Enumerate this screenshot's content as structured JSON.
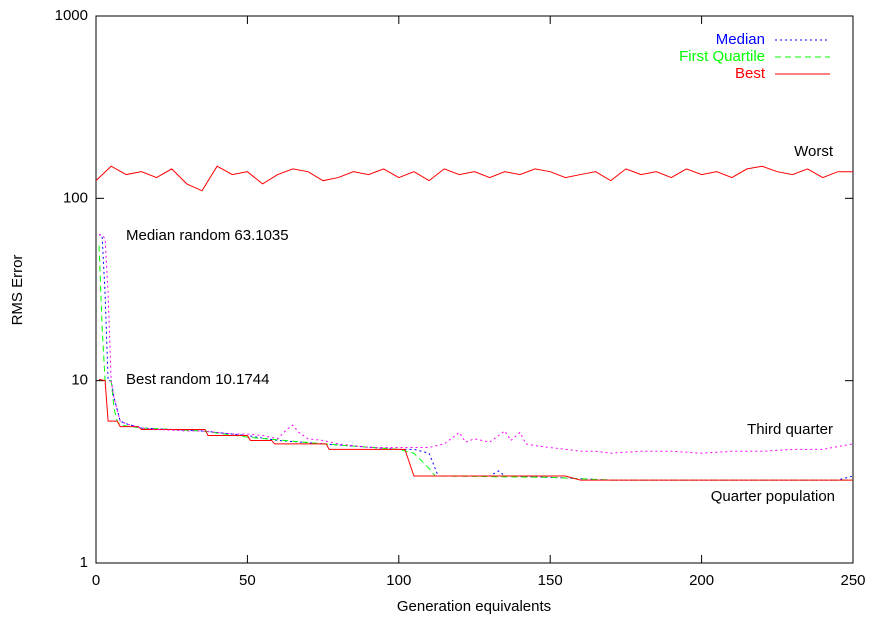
{
  "chart_data": {
    "type": "line",
    "xlabel": "Generation equivalents",
    "ylabel": "RMS Error",
    "xlim": [
      0,
      250
    ],
    "xticks": [
      0,
      50,
      100,
      150,
      200,
      250
    ],
    "ylim": [
      1,
      1000
    ],
    "yticks": [
      1,
      10,
      100,
      1000
    ],
    "log_y": true,
    "grid": false,
    "legend": "top-right",
    "series": [
      {
        "name": "Median",
        "color": "#0000ff",
        "dash": "2,3",
        "x": [
          1,
          2,
          3,
          4,
          5,
          6,
          8,
          10,
          15,
          35,
          50,
          60,
          75,
          100,
          105,
          110,
          113,
          130,
          133,
          135,
          150,
          170,
          245,
          250
        ],
        "values": [
          63.1,
          63,
          30,
          10,
          10,
          8,
          6,
          5.8,
          5.5,
          5.3,
          5.0,
          4.7,
          4.5,
          4.2,
          4.2,
          4.0,
          3.0,
          3.0,
          3.2,
          3.0,
          2.95,
          2.85,
          2.85,
          3.0
        ]
      },
      {
        "name": "First Quartile",
        "color": "#00ff00",
        "dash": "6,4",
        "x": [
          1,
          2,
          3,
          5,
          6,
          7,
          8,
          15,
          35,
          50,
          75,
          100,
          105,
          110,
          112,
          150,
          170,
          250
        ],
        "values": [
          55,
          20,
          10,
          10,
          7,
          6,
          5.7,
          5.5,
          5.3,
          4.9,
          4.5,
          4.2,
          4.0,
          3.3,
          3.0,
          2.95,
          2.85,
          2.85
        ]
      },
      {
        "name": "Best",
        "color": "#ff0000",
        "x": [
          1,
          3,
          4,
          7,
          8,
          14,
          15,
          36,
          37,
          50,
          51,
          58,
          59,
          76,
          77,
          102,
          105,
          155,
          160,
          250
        ],
        "values": [
          10.17,
          10,
          6,
          6,
          5.6,
          5.6,
          5.4,
          5.4,
          5.0,
          5.0,
          4.7,
          4.7,
          4.5,
          4.5,
          4.2,
          4.2,
          3.0,
          3.0,
          2.85,
          2.85
        ]
      },
      {
        "color": "#ff00ff",
        "dash": "2,3",
        "x": [
          1,
          2,
          3,
          4,
          5,
          6,
          8,
          10,
          15,
          20,
          30,
          35,
          40,
          45,
          50,
          55,
          60,
          63,
          65,
          67,
          70,
          75,
          80,
          85,
          90,
          95,
          100,
          105,
          110,
          115,
          120,
          122,
          125,
          130,
          135,
          137,
          140,
          142,
          145,
          150,
          155,
          160,
          165,
          170,
          180,
          190,
          200,
          210,
          220,
          230,
          240,
          250
        ],
        "values": [
          63,
          63,
          60,
          30,
          10,
          8,
          6,
          5.8,
          5.5,
          5.4,
          5.3,
          5.3,
          5.2,
          5.1,
          5.1,
          5.0,
          4.8,
          5.4,
          5.7,
          5.2,
          4.8,
          4.7,
          4.5,
          4.4,
          4.3,
          4.3,
          4.3,
          4.3,
          4.3,
          4.5,
          5.2,
          4.6,
          4.8,
          4.6,
          5.3,
          4.7,
          5.2,
          4.5,
          4.4,
          4.3,
          4.2,
          4.1,
          4.1,
          4.0,
          4.1,
          4.1,
          4.0,
          4.1,
          4.1,
          4.2,
          4.2,
          4.5
        ]
      },
      {
        "color": "#ff0000",
        "x": [
          0,
          5,
          10,
          15,
          20,
          25,
          30,
          35,
          40,
          45,
          50,
          55,
          60,
          65,
          70,
          75,
          80,
          85,
          90,
          95,
          100,
          105,
          110,
          115,
          120,
          125,
          130,
          135,
          140,
          145,
          150,
          155,
          160,
          165,
          170,
          175,
          180,
          185,
          190,
          195,
          200,
          205,
          210,
          215,
          220,
          225,
          230,
          235,
          240,
          245,
          250
        ],
        "values": [
          125,
          150,
          135,
          140,
          130,
          145,
          120,
          110,
          150,
          135,
          140,
          120,
          135,
          145,
          140,
          125,
          130,
          140,
          135,
          145,
          130,
          140,
          125,
          145,
          135,
          140,
          130,
          140,
          135,
          145,
          140,
          130,
          135,
          140,
          125,
          145,
          135,
          140,
          130,
          145,
          135,
          140,
          130,
          145,
          150,
          140,
          135,
          145,
          130,
          140,
          140
        ]
      }
    ],
    "annotations": [
      "Median random 63.1035",
      "Best random 10.1744",
      "Worst",
      "Third quarter",
      "Quarter population"
    ]
  }
}
